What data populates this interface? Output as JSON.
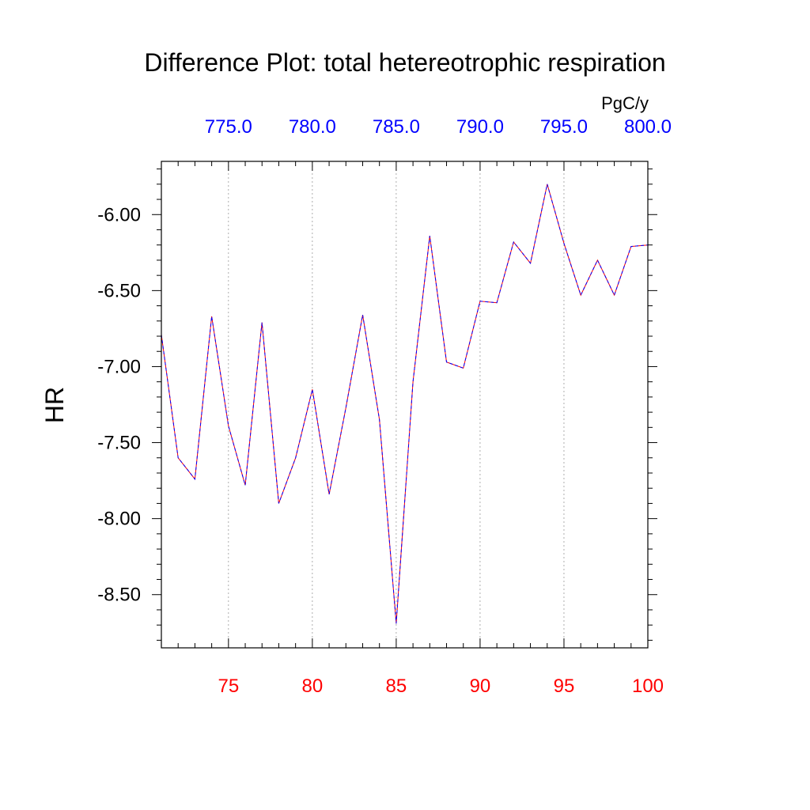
{
  "chart_data": {
    "type": "line",
    "title": "Difference Plot: total hetereotrophic respiration",
    "ylabel": "HR",
    "units": "PgC/y",
    "xlim": [
      71,
      100
    ],
    "ylim": [
      -8.85,
      -5.65
    ],
    "x_bottom_ticks": [
      75,
      80,
      85,
      90,
      95,
      100
    ],
    "x_bottom_tick_labels": [
      "75",
      "80",
      "85",
      "90",
      "95",
      "100"
    ],
    "x_top_ticks": [
      75,
      80,
      85,
      90,
      95,
      100
    ],
    "x_top_tick_labels": [
      "775.0",
      "780.0",
      "785.0",
      "790.0",
      "795.0",
      "800.0"
    ],
    "y_ticks": [
      -6.0,
      -6.5,
      -7.0,
      -7.5,
      -8.0,
      -8.5
    ],
    "y_tick_labels": [
      "-6.00",
      "-6.50",
      "-7.00",
      "-7.50",
      "-8.00",
      "-8.50"
    ],
    "grid": "vertical dashed at major x ticks",
    "colors": {
      "bottom_axis_labels": "#ff0000",
      "top_axis_labels": "#0000ff",
      "series_1": "#ff0000",
      "series_2": "#0000ff"
    },
    "x": [
      71,
      72,
      73,
      74,
      75,
      76,
      77,
      78,
      79,
      80,
      81,
      82,
      83,
      84,
      85,
      86,
      87,
      88,
      89,
      90,
      91,
      92,
      93,
      94,
      95,
      96,
      97,
      98,
      99,
      100
    ],
    "series": [
      {
        "values": [
          -6.79,
          -7.6,
          -7.74,
          -6.67,
          -7.39,
          -7.78,
          -6.71,
          -7.9,
          -7.6,
          -7.15,
          -7.84,
          -7.27,
          -6.66,
          -7.35,
          -8.69,
          -7.1,
          -6.14,
          -6.97,
          -7.01,
          -6.57,
          -6.58,
          -6.18,
          -6.32,
          -5.8,
          -6.19,
          -6.53,
          -6.3,
          -6.53,
          -6.21,
          -6.2
        ]
      },
      {
        "values": [
          -6.79,
          -7.6,
          -7.74,
          -6.67,
          -7.39,
          -7.78,
          -6.71,
          -7.9,
          -7.6,
          -7.15,
          -7.84,
          -7.27,
          -6.66,
          -7.35,
          -8.69,
          -7.1,
          -6.14,
          -6.97,
          -7.01,
          -6.57,
          -6.58,
          -6.18,
          -6.32,
          -5.8,
          -6.19,
          -6.53,
          -6.3,
          -6.53,
          -6.21,
          -6.2
        ]
      }
    ]
  }
}
